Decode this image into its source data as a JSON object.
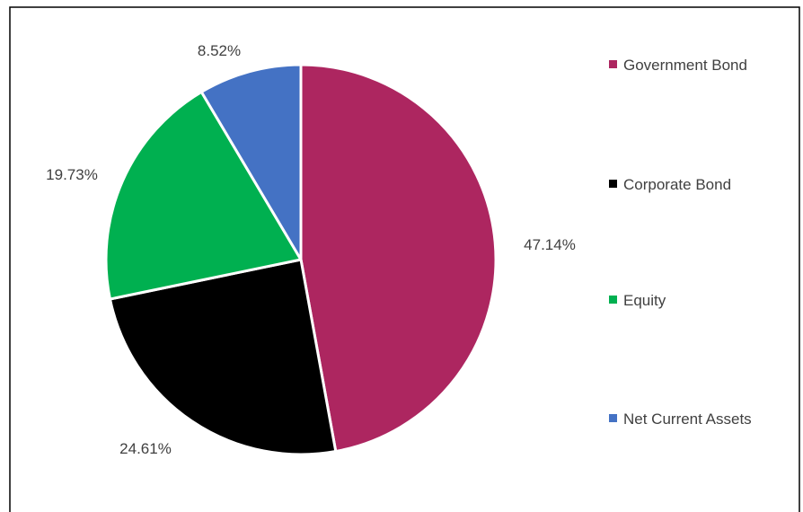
{
  "chart_data": {
    "type": "pie",
    "series": [
      {
        "name": "Government Bond",
        "value": 47.14,
        "label": "47.14%",
        "color": "#AD2660"
      },
      {
        "name": "Corporate Bond",
        "value": 24.61,
        "label": "24.61%",
        "color": "#000000"
      },
      {
        "name": "Equity",
        "value": 19.73,
        "label": "19.73%",
        "color": "#00B050"
      },
      {
        "name": "Net Current Assets",
        "value": 8.52,
        "label": "8.52%",
        "color": "#4472C4"
      }
    ],
    "start_angle_deg": 0,
    "direction": "clockwise",
    "legend_position": "right"
  }
}
